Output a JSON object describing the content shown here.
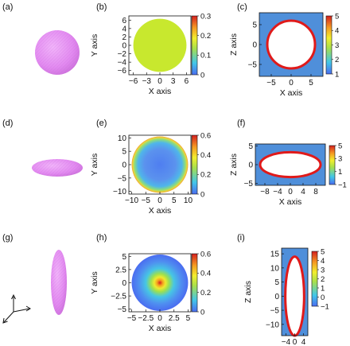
{
  "figure": {
    "panel_labels": [
      "(a)",
      "(b)",
      "(c)",
      "(d)",
      "(e)",
      "(f)",
      "(g)",
      "(h)",
      "(i)"
    ],
    "colors": {
      "particle": "#e28af0",
      "outside": "#4f8fda",
      "ring": "#e01a1a",
      "interior": "#ffffff",
      "colormap": [
        "#4a6cf0",
        "#42c7e8",
        "#a9e04a",
        "#f2ee2e",
        "#f59a22",
        "#d41f1f"
      ]
    }
  },
  "chart_data": [
    {
      "panel": "(b)",
      "type": "heatmap",
      "xlabel": "X axis",
      "ylabel": "Y axis",
      "xticks": [
        "−6",
        "−3",
        "0",
        "3",
        "6"
      ],
      "yticks": [
        "6",
        "4",
        "2",
        "0",
        "−2",
        "−4",
        "−6"
      ],
      "xlim": [
        -7,
        7
      ],
      "ylim": [
        -7,
        7
      ],
      "shape": "disk",
      "radius": 6,
      "field": "uniform",
      "value": 0.22,
      "colorbar": {
        "min": 0,
        "max": 0.3,
        "ticks": [
          "0.3",
          "0.2",
          "0.1",
          "0"
        ]
      }
    },
    {
      "panel": "(c)",
      "type": "heatmap",
      "xlabel": "X axis",
      "ylabel": "Z axis",
      "xticks": [
        "−5",
        "0",
        "5"
      ],
      "yticks": [
        "5",
        "0",
        "−5"
      ],
      "xlim": [
        -8,
        8
      ],
      "ylim": [
        -8,
        8
      ],
      "shape": "circle",
      "semi_axis_x": 6,
      "semi_axis_z": 6,
      "colorbar": {
        "min": 1,
        "max": 5,
        "ticks": [
          "5",
          "4",
          "3",
          "2",
          "1"
        ]
      }
    },
    {
      "panel": "(e)",
      "type": "heatmap",
      "xlabel": "X axis",
      "ylabel": "Y axis",
      "xticks": [
        "−10",
        "−5",
        "0",
        "5",
        "10"
      ],
      "yticks": [
        "10",
        "5",
        "0",
        "−5",
        "−10"
      ],
      "xlim": [
        -11,
        11
      ],
      "ylim": [
        -11,
        11
      ],
      "shape": "disk",
      "radius": 10,
      "field": "rim-high",
      "center_value": 0.08,
      "rim_value": 0.6,
      "colorbar": {
        "min": 0,
        "max": 0.6,
        "ticks": [
          "0.6",
          "0.4",
          "0.2",
          "0"
        ]
      }
    },
    {
      "panel": "(f)",
      "type": "heatmap",
      "xlabel": "X axis",
      "ylabel": "Z axis",
      "xticks": [
        "−8",
        "−4",
        "0",
        "4",
        "8"
      ],
      "yticks": [
        "5",
        "0",
        "−5"
      ],
      "xlim": [
        -11,
        11
      ],
      "ylim": [
        -5.5,
        5.5
      ],
      "shape": "ellipse",
      "semi_axis_x": 9.5,
      "semi_axis_z": 3.3,
      "colorbar": {
        "min": -1,
        "max": 5,
        "ticks": [
          "5",
          "3",
          "1",
          "−1"
        ]
      }
    },
    {
      "panel": "(h)",
      "type": "heatmap",
      "xlabel": "X axis",
      "ylabel": "Y axis",
      "xticks": [
        "−5",
        "−2.5",
        "0",
        "2.5",
        "5"
      ],
      "yticks": [
        "5",
        "2.5",
        "0",
        "−2.5",
        "−5"
      ],
      "xlim": [
        -5.5,
        5.5
      ],
      "ylim": [
        -5.5,
        5.5
      ],
      "shape": "disk",
      "radius": 5,
      "field": "center-high",
      "center_value": 0.6,
      "rim_value": 0.05,
      "colorbar": {
        "min": 0,
        "max": 0.6,
        "ticks": [
          "0.6",
          "0.4",
          "0.2",
          "0"
        ]
      }
    },
    {
      "panel": "(i)",
      "type": "heatmap",
      "xlabel": "X axis",
      "ylabel": "Z axis",
      "xticks": [
        "−4",
        "0",
        "4"
      ],
      "yticks": [
        "15",
        "10",
        "5",
        "0",
        "−5",
        "−10"
      ],
      "xlim": [
        -6,
        6
      ],
      "ylim": [
        -14,
        17
      ],
      "shape": "ellipse",
      "semi_axis_x": 4.3,
      "semi_axis_z": 14,
      "colorbar": {
        "min": -1,
        "max": 5,
        "ticks": [
          "5",
          "4",
          "3",
          "2",
          "1",
          "0",
          "−1"
        ]
      }
    }
  ]
}
